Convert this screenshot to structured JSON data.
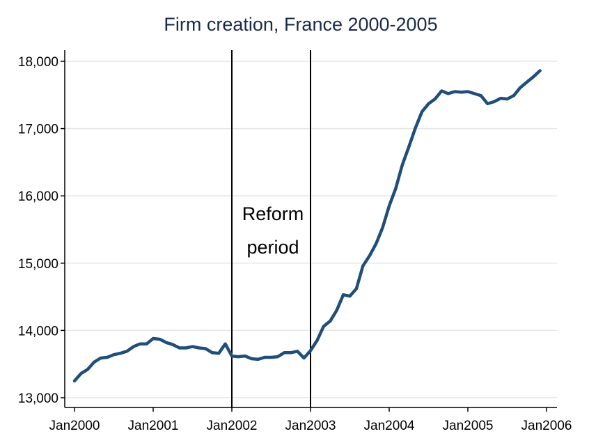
{
  "chart_data": {
    "type": "line",
    "title": "Firm creation, France 2000-2005",
    "xlabel": "",
    "ylabel": "",
    "ylim": [
      13000,
      18000
    ],
    "yticks": [
      13000,
      14000,
      15000,
      16000,
      17000,
      18000
    ],
    "ytick_labels": [
      "13,000",
      "14,000",
      "15,000",
      "16,000",
      "17,000",
      "18,000"
    ],
    "xlim": [
      "2000-01",
      "2006-01"
    ],
    "xticks": [
      "2000-01",
      "2001-01",
      "2002-01",
      "2003-01",
      "2004-01",
      "2005-01",
      "2006-01"
    ],
    "xtick_labels": [
      "Jan2000",
      "Jan2001",
      "Jan2002",
      "Jan2003",
      "Jan2004",
      "Jan2005",
      "Jan2006"
    ],
    "grid": "horizontal",
    "line_color": "#1f4e79",
    "vlines": [
      "2002-01",
      "2003-01"
    ],
    "annotation": [
      "Reform",
      "period"
    ],
    "series": [
      {
        "x": [
          "2000-01",
          "2000-02",
          "2000-03",
          "2000-04",
          "2000-05",
          "2000-06",
          "2000-07",
          "2000-08",
          "2000-09",
          "2000-10",
          "2000-11",
          "2000-12",
          "2001-01",
          "2001-02",
          "2001-03",
          "2001-04",
          "2001-05",
          "2001-06",
          "2001-07",
          "2001-08",
          "2001-09",
          "2001-10",
          "2001-11",
          "2001-12",
          "2002-01",
          "2002-02",
          "2002-03",
          "2002-04",
          "2002-05",
          "2002-06",
          "2002-07",
          "2002-08",
          "2002-09",
          "2002-10",
          "2002-11",
          "2002-12",
          "2003-01",
          "2003-02",
          "2003-03",
          "2003-04",
          "2003-05",
          "2003-06",
          "2003-07",
          "2003-08",
          "2003-09",
          "2003-10",
          "2003-11",
          "2003-12",
          "2004-01",
          "2004-02",
          "2004-03",
          "2004-04",
          "2004-05",
          "2004-06",
          "2004-07",
          "2004-08",
          "2004-09",
          "2004-10",
          "2004-11",
          "2004-12",
          "2005-01",
          "2005-02",
          "2005-03",
          "2005-04",
          "2005-05",
          "2005-06",
          "2005-07",
          "2005-08",
          "2005-09",
          "2005-10",
          "2005-11",
          "2005-12"
        ],
        "values": [
          13250,
          13360,
          13420,
          13530,
          13590,
          13600,
          13640,
          13660,
          13690,
          13760,
          13800,
          13800,
          13880,
          13870,
          13820,
          13790,
          13740,
          13740,
          13760,
          13740,
          13730,
          13670,
          13660,
          13800,
          13620,
          13610,
          13620,
          13580,
          13570,
          13600,
          13600,
          13610,
          13670,
          13670,
          13690,
          13590,
          13700,
          13850,
          14060,
          14140,
          14300,
          14530,
          14510,
          14620,
          14960,
          15110,
          15290,
          15530,
          15850,
          16110,
          16460,
          16730,
          17010,
          17250,
          17370,
          17440,
          17560,
          17520,
          17550,
          17540,
          17550,
          17520,
          17490,
          17370,
          17400,
          17450,
          17440,
          17490,
          17610,
          17690,
          17770,
          17860
        ]
      }
    ]
  }
}
